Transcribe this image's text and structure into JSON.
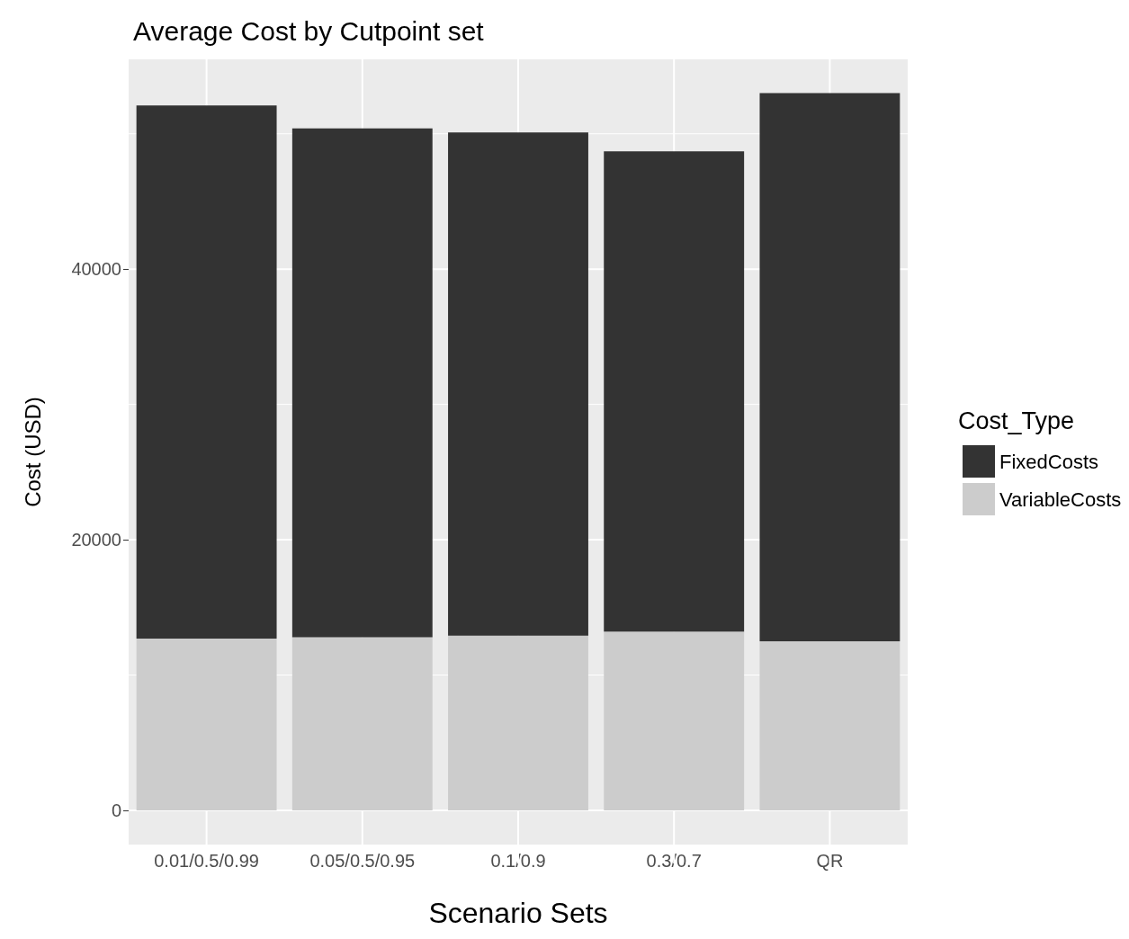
{
  "chart_data": {
    "type": "bar",
    "title": "Average Cost by Cutpoint set",
    "xlabel": "Scenario Sets",
    "ylabel": "Cost (USD)",
    "legend_title": "Cost_Type",
    "categories": [
      "0.01/0.5/0.99",
      "0.05/0.5/0.95",
      "0.1/0.9",
      "0.3/0.7",
      "QR"
    ],
    "stacked": true,
    "series": [
      {
        "name": "VariableCosts",
        "color": "#cccccc",
        "values": [
          12700,
          12800,
          12900,
          13200,
          12500
        ]
      },
      {
        "name": "FixedCosts",
        "color": "#333333",
        "values": [
          39400,
          37600,
          37200,
          35500,
          40500
        ]
      }
    ],
    "ylim": [
      -2530,
      55500
    ],
    "yticks": [
      0,
      20000,
      40000
    ],
    "grid": true,
    "legend": "right"
  }
}
